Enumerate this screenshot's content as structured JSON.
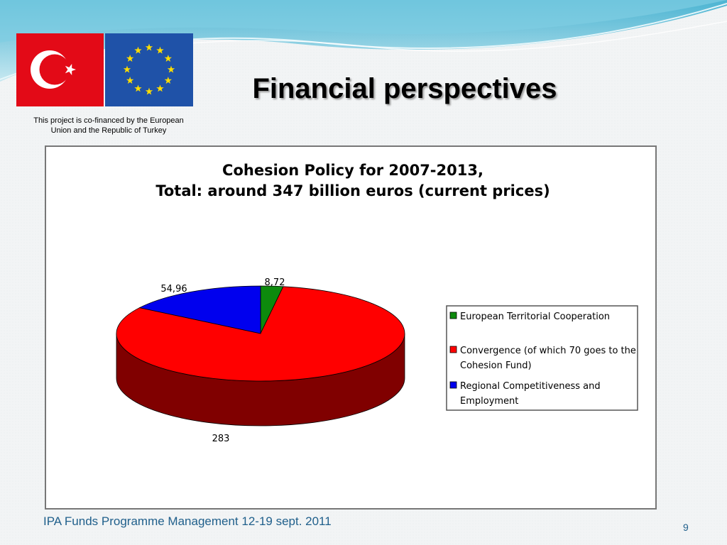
{
  "slide": {
    "title": "Financial perspectives",
    "cofinance_line1": "This project is co-financed by the European",
    "cofinance_line2": "Union and the Republic of Turkey",
    "footer": "IPA Funds Programme Management 12-19 sept. 2011",
    "page_number": "9"
  },
  "flags": [
    "turkey-flag",
    "eu-flag"
  ],
  "colors": {
    "title": "#000000",
    "footer": "#1f5f8b",
    "wave": "#4db8d4",
    "turkey_red": "#e30a17",
    "eu_blue": "#1f52a8",
    "eu_star": "#ffdd00"
  },
  "chart_data": {
    "type": "pie",
    "title_line1": "Cohesion Policy for 2007-2013,",
    "title_line2": "Total: around 347 billion euros (current prices)",
    "slices": [
      {
        "label": "European Territorial Cooperation",
        "value": 8.72,
        "display": "8,72",
        "color": "#0d8a0d",
        "side": "#064a06"
      },
      {
        "label": "Convergence (of which 70 goes to the Cohesion Fund)",
        "label_lines": [
          "Convergence (of which 70 goes to the",
          "Cohesion Fund)"
        ],
        "value": 283,
        "display": "283",
        "color": "#ff0000",
        "side": "#800000"
      },
      {
        "label": "Regional Competitiveness and Employment",
        "label_lines": [
          "Regional Competitiveness and",
          "Employment"
        ],
        "value": 54.96,
        "display": "54,96",
        "color": "#0000ee",
        "side": "#000080"
      }
    ],
    "legend_position": "right",
    "style": "3d"
  }
}
